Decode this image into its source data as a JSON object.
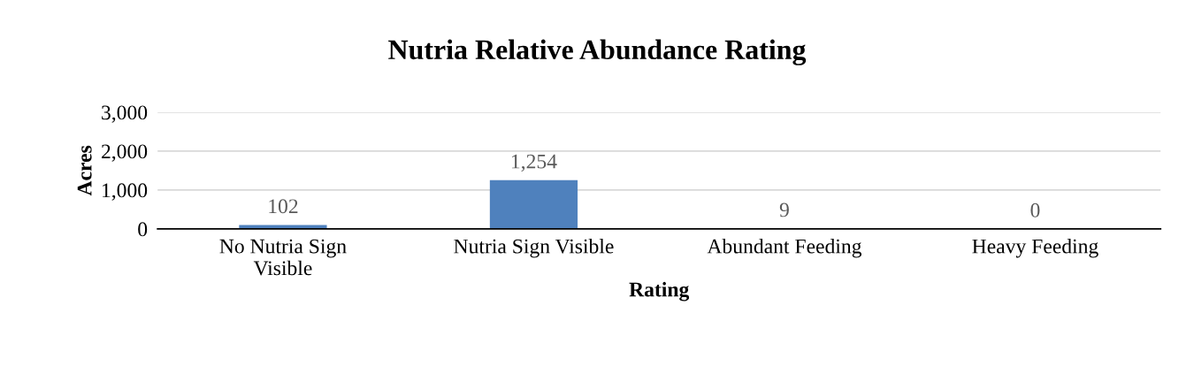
{
  "chart_data": {
    "type": "bar",
    "title": "Nutria Relative Abundance Rating",
    "xlabel": "Rating",
    "ylabel": "Acres",
    "categories": [
      "No Nutria Sign\nVisible",
      "Nutria Sign Visible",
      "Abundant Feeding",
      "Heavy Feeding"
    ],
    "values": [
      102,
      1254,
      9,
      0
    ],
    "value_labels": [
      "102",
      "1,254",
      "9",
      "0"
    ],
    "color": "#4f81bd",
    "ylim": [
      0,
      3000
    ],
    "yticks": [
      {
        "value": 0,
        "label": "0"
      },
      {
        "value": 1000,
        "label": "1,000"
      },
      {
        "value": 2000,
        "label": "2,000"
      },
      {
        "value": 3000,
        "label": "3,000"
      }
    ],
    "grid": "y",
    "legend": false
  }
}
